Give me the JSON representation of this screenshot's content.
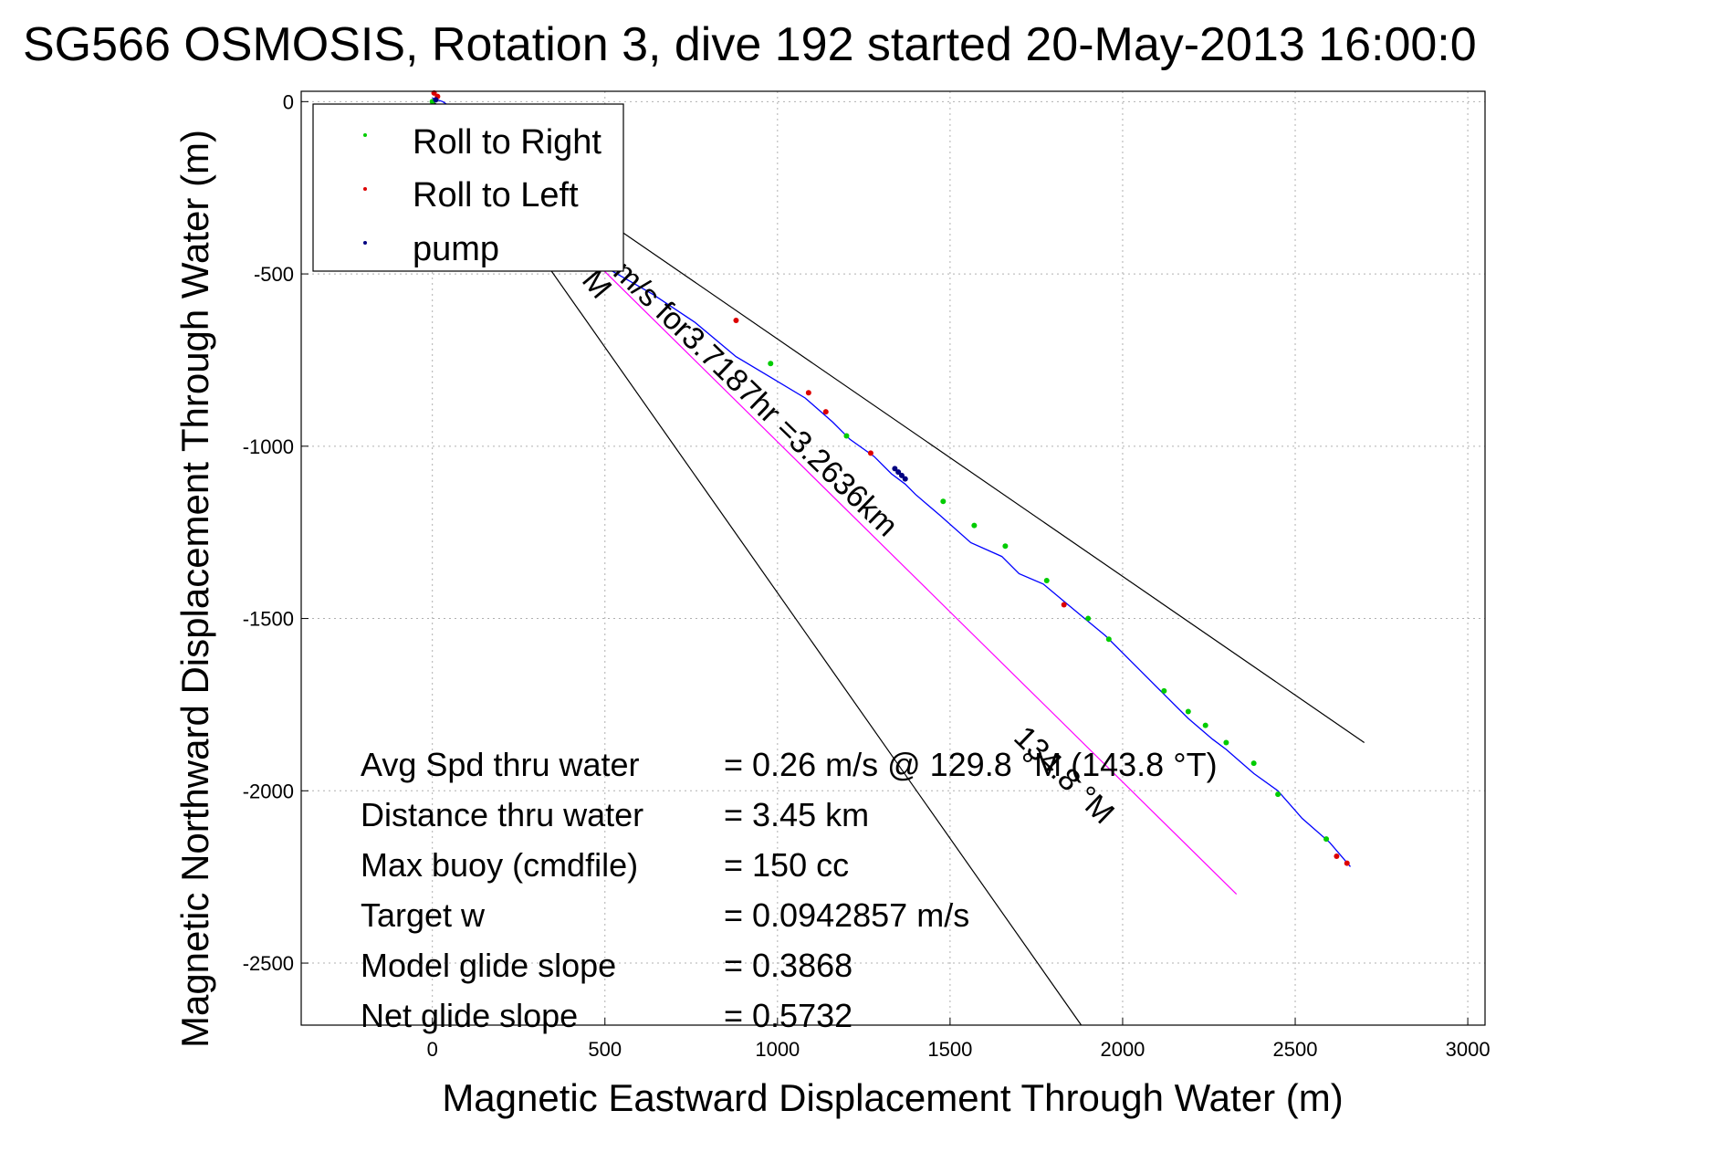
{
  "chart_data": {
    "type": "scatter",
    "title": "SG566 OSMOSIS, Rotation 3, dive 192 started 20-May-2013 16:00:0",
    "xlabel": "Magnetic Eastward Displacement Through Water (m)",
    "ylabel": "Magnetic Northward Displacement Through Water (m)",
    "xlim": [
      -380,
      3050
    ],
    "ylim": [
      -2680,
      30
    ],
    "xticks": [
      0,
      500,
      1000,
      1500,
      2000,
      2500,
      3000
    ],
    "yticks": [
      0,
      -500,
      -1000,
      -1500,
      -2000,
      -2500
    ],
    "grid": true,
    "legend": {
      "position": "top-left",
      "entries": [
        {
          "label": "Roll to Right",
          "color": "#00cc00"
        },
        {
          "label": "Roll to Left",
          "color": "#dd0000"
        },
        {
          "label": "pump",
          "color": "#000080"
        }
      ]
    },
    "series": [
      {
        "name": "track",
        "color": "#0000ff",
        "x": [
          0,
          30,
          60,
          90,
          150,
          220,
          300,
          400,
          500,
          640,
          760,
          880,
          980,
          1080,
          1160,
          1210,
          1280,
          1330,
          1370,
          1400,
          1470,
          1560,
          1650,
          1700,
          1770,
          1830,
          1890,
          1950,
          2050,
          2120,
          2190,
          2260,
          2300,
          2380,
          2450,
          2520,
          2600,
          2660
        ],
        "y": [
          10,
          0,
          -20,
          -60,
          -150,
          -240,
          -320,
          -400,
          -480,
          -560,
          -640,
          -740,
          -800,
          -860,
          -930,
          -980,
          -1030,
          -1080,
          -1110,
          -1140,
          -1200,
          -1280,
          -1320,
          -1370,
          -1400,
          -1450,
          -1500,
          -1550,
          -1650,
          -1720,
          -1790,
          -1850,
          -1880,
          -1950,
          -2000,
          -2080,
          -2150,
          -2220
        ]
      },
      {
        "name": "Roll to Right",
        "color": "#00cc00",
        "x": [
          0,
          980,
          1200,
          1480,
          1570,
          1660,
          1780,
          1900,
          1960,
          2120,
          2190,
          2240,
          2300,
          2380,
          2450,
          2590
        ],
        "y": [
          0,
          -760,
          -970,
          -1160,
          -1230,
          -1290,
          -1390,
          -1500,
          -1560,
          -1710,
          -1770,
          -1810,
          -1860,
          -1920,
          -2010,
          -2140
        ]
      },
      {
        "name": "Roll to Left",
        "color": "#dd0000",
        "x": [
          5,
          15,
          880,
          1090,
          1140,
          1270,
          1830,
          2620,
          2650
        ],
        "y": [
          25,
          15,
          -635,
          -845,
          -900,
          -1020,
          -1460,
          -2190,
          -2210
        ]
      },
      {
        "name": "pump",
        "color": "#000080",
        "x": [
          10,
          1340,
          1350,
          1360,
          1370
        ],
        "y": [
          5,
          -1065,
          -1075,
          -1085,
          -1095
        ]
      },
      {
        "name": "avg-speed line",
        "color": "#ff00ff",
        "x": [
          0,
          2330
        ],
        "y": [
          0,
          -2300
        ]
      },
      {
        "name": "bound-1",
        "color": "#000000",
        "x": [
          0,
          2700
        ],
        "y": [
          0,
          -1860
        ]
      },
      {
        "name": "bound-2",
        "color": "#000000",
        "x": [
          0,
          1880
        ],
        "y": [
          0,
          -2680
        ]
      }
    ],
    "annotations": [
      {
        "text": "M",
        "x": 430,
        "y": -520,
        "rotate": 50
      },
      {
        "text": "m/s for3.7187hr =3.2636km",
        "x": 520,
        "y": -500,
        "rotate": 44
      },
      {
        "text": "134.8 °M",
        "x": 1680,
        "y": -1850,
        "rotate": 44
      }
    ],
    "stats": [
      {
        "label": "Avg Spd thru water",
        "value": "=  0.26 m/s @ 129.8 °M (143.8 °T)"
      },
      {
        "label": "Distance thru water",
        "value": "=  3.45 km"
      },
      {
        "label": "Max buoy (cmdfile)",
        "value": "= 150 cc"
      },
      {
        "label": "Target w",
        "value": "= 0.0942857 m/s"
      },
      {
        "label": "Model glide slope",
        "value": "= 0.3868"
      },
      {
        "label": "Net glide slope",
        "value": "= 0.5732"
      }
    ]
  }
}
